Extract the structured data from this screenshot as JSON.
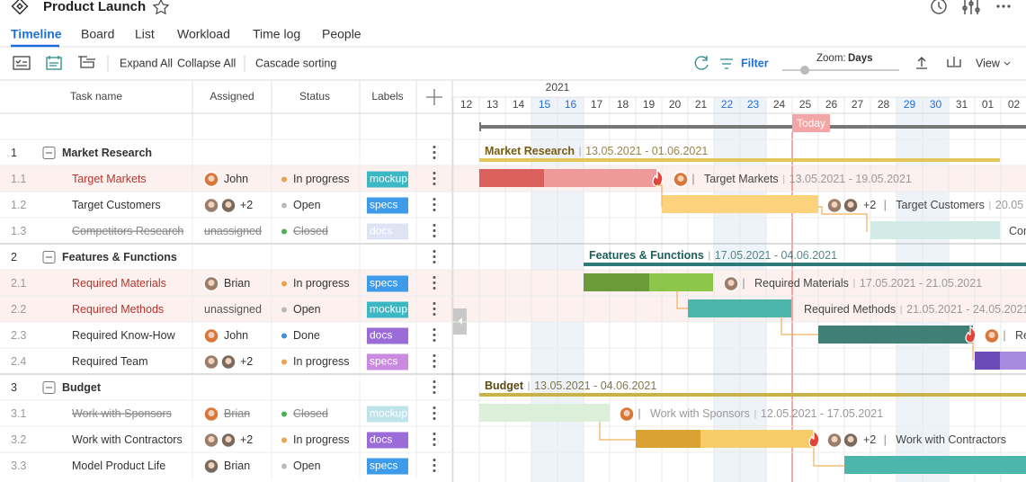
{
  "header": {
    "title": "Product Launch"
  },
  "tabs": [
    "Timeline",
    "Board",
    "List",
    "Workload",
    "Time log",
    "People"
  ],
  "toolbar": {
    "expand": "Expand All",
    "collapse": "Collapse All",
    "cascade": "Cascade sorting",
    "filter": "Filter",
    "zoom_label": "Zoom:",
    "zoom_value": "Days",
    "view": "View"
  },
  "columns": [
    "Task name",
    "Assigned",
    "Status",
    "Labels"
  ],
  "timeline": {
    "year": "2021",
    "days": [
      "12",
      "13",
      "14",
      "15",
      "16",
      "17",
      "18",
      "19",
      "20",
      "21",
      "22",
      "23",
      "24",
      "25",
      "26",
      "27",
      "28",
      "29",
      "30",
      "31",
      "01",
      "02"
    ],
    "today": "Today"
  },
  "rows": [
    {
      "num": "1",
      "name": "Market Research",
      "dates": "13.05.2021 - 01.06.2021"
    },
    {
      "num": "1.1",
      "name": "Target Markets",
      "assigned": "John",
      "status": "In progress",
      "label": "mockup",
      "dates": "13.05.2021 - 19.05.2021"
    },
    {
      "num": "1.2",
      "name": "Target Customers",
      "assigned": "+2",
      "status": "Open",
      "label": "specs",
      "dates": "20.05"
    },
    {
      "num": "1.3",
      "name": "Competitors Research",
      "assigned": "unassigned",
      "status": "Closed",
      "label": "docs"
    },
    {
      "num": "2",
      "name": "Features & Functions",
      "dates": "17.05.2021 - 04.06.2021"
    },
    {
      "num": "2.1",
      "name": "Required Materials",
      "assigned": "Brian",
      "status": "In progress",
      "label": "specs",
      "dates": "17.05.2021 - 21.05.2021"
    },
    {
      "num": "2.2",
      "name": "Required Methods",
      "assigned": "unassigned",
      "status": "Open",
      "label": "mockup",
      "dates": "21.05.2021 - 24.05.2021"
    },
    {
      "num": "2.3",
      "name": "Required Know-How",
      "assigned": "John",
      "status": "Done",
      "label": "docs"
    },
    {
      "num": "2.4",
      "name": "Required Team",
      "assigned": "+2",
      "status": "In progress",
      "label": "specs"
    },
    {
      "num": "3",
      "name": "Budget",
      "dates": "13.05.2021 - 04.06.2021"
    },
    {
      "num": "3.1",
      "name": "Work with Sponsors",
      "assigned": "Brian",
      "status": "Closed",
      "label": "mockup",
      "dates": "12.05.2021 - 17.05.2021"
    },
    {
      "num": "3.2",
      "name": "Work with Contractors",
      "assigned": "+2",
      "status": "In progress",
      "label": "docs"
    },
    {
      "num": "3.3",
      "name": "Model Product Life",
      "assigned": "Brian",
      "status": "Open",
      "label": "specs"
    }
  ]
}
